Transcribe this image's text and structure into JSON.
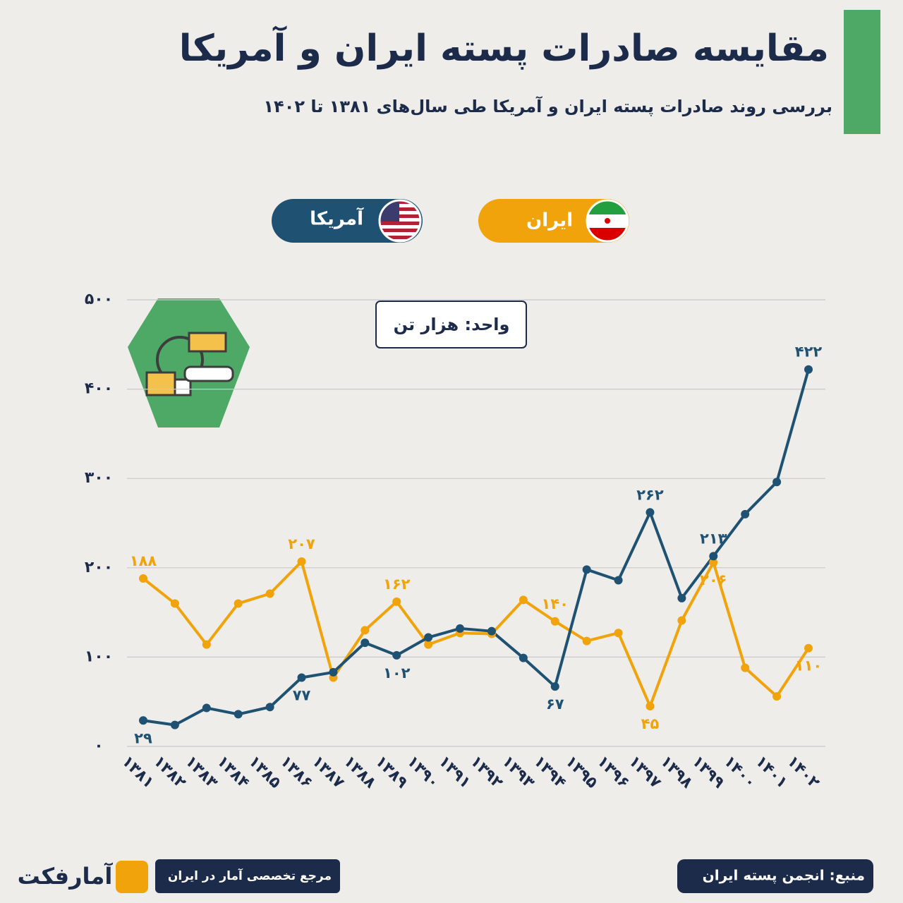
{
  "chart_data": {
    "type": "line",
    "title": "مقایسه صادرات پسته ایران و آمریکا",
    "subtitle": "بررسی روند صادرات پسته ایران و آمریکا طی سال‌های ۱۳۸۱ تا ۱۴۰۲",
    "unit": "واحد: هزار تن",
    "categories": [
      "۱۳۸۱",
      "۱۳۸۲",
      "۱۳۸۳",
      "۱۳۸۴",
      "۱۳۸۵",
      "۱۳۸۶",
      "۱۳۸۷",
      "۱۳۸۸",
      "۱۳۸۹",
      "۱۳۹۰",
      "۱۳۹۱",
      "۱۳۹۲",
      "۱۳۹۳",
      "۱۳۹۴",
      "۱۳۹۵",
      "۱۳۹۶",
      "۱۳۹۷",
      "۱۳۹۸",
      "۱۳۹۹",
      "۱۴۰۰",
      "۱۴۰۱",
      "۱۴۰۲"
    ],
    "series": [
      {
        "name": "ایران",
        "color": "#f0a30a",
        "values": [
          188,
          160,
          114,
          160,
          171,
          207,
          77,
          130,
          162,
          114,
          127,
          126,
          164,
          140,
          118,
          127,
          45,
          141,
          206,
          88,
          56,
          110
        ],
        "value_labels": [
          "۱۸۸",
          null,
          null,
          null,
          null,
          "۲۰۷",
          null,
          null,
          "۱۶۲",
          null,
          null,
          null,
          null,
          "۱۴۰",
          null,
          null,
          "۴۵",
          null,
          "۲۰۶",
          null,
          null,
          "۱۱۰"
        ]
      },
      {
        "name": "آمریکا",
        "color": "#1f5272",
        "values": [
          29,
          24,
          43,
          36,
          44,
          77,
          83,
          116,
          102,
          122,
          132,
          129,
          99,
          67,
          198,
          186,
          262,
          166,
          213,
          260,
          296,
          422
        ],
        "value_labels": [
          "۲۹",
          null,
          null,
          null,
          null,
          "۷۷",
          null,
          null,
          "۱۰۲",
          null,
          null,
          null,
          null,
          "۶۷",
          null,
          null,
          "۲۶۲",
          null,
          "۲۱۳",
          null,
          null,
          "۴۲۲"
        ]
      }
    ],
    "ylim": [
      0,
      500
    ],
    "yticks": [
      {
        "value": 0,
        "label": "۰"
      },
      {
        "value": 100,
        "label": "۱۰۰"
      },
      {
        "value": 200,
        "label": "۲۰۰"
      },
      {
        "value": 300,
        "label": "۳۰۰"
      },
      {
        "value": 400,
        "label": "۴۰۰"
      },
      {
        "value": 500,
        "label": "۵۰۰"
      }
    ],
    "grid": true,
    "brand": "آمارفکت",
    "tagline": "مرجع تخصصی آمار در ایران",
    "source": "منبع: انجمن پسته ایران"
  }
}
